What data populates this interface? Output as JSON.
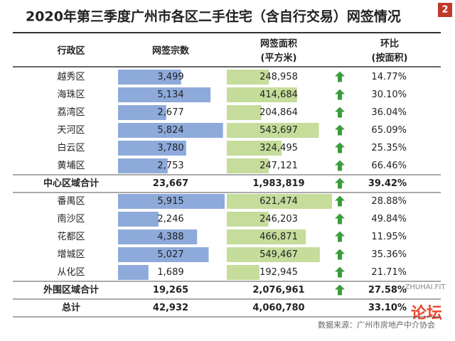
{
  "header": {
    "title": "2020年第三季度广州市各区二手住宅（含自行交易）网签情况",
    "badge": "2"
  },
  "columns": {
    "district": "行政区",
    "count": "网签宗数",
    "area": [
      "网签面积",
      "(平方米)"
    ],
    "ratio": [
      "环比",
      "(按面积)"
    ]
  },
  "sections": [
    {
      "districts": [
        {
          "district": "越秀区",
          "count": "3,499",
          "area": "248,958",
          "ratio": "14.77%"
        },
        {
          "district": "海珠区",
          "count": "5,134",
          "area": "414,684",
          "ratio": "30.10%"
        },
        {
          "district": "荔湾区",
          "count": "2,677",
          "area": "204,864",
          "ratio": "36.04%"
        },
        {
          "district": "天河区",
          "count": "5,824",
          "area": "543,697",
          "ratio": "65.09%"
        },
        {
          "district": "白云区",
          "count": "3,780",
          "area": "324,495",
          "ratio": "25.35%"
        },
        {
          "district": "黄埔区",
          "count": "2,753",
          "area": "247,121",
          "ratio": "66.46%"
        }
      ],
      "subtotal": {
        "district": "中心区域合计",
        "count": "23,667",
        "area": "1,983,819",
        "ratio": "39.42%"
      }
    },
    {
      "districts": [
        {
          "district": "番禺区",
          "count": "5,915",
          "area": "621,474",
          "ratio": "28.88%"
        },
        {
          "district": "南沙区",
          "count": "2,246",
          "area": "246,203",
          "ratio": "49.84%"
        },
        {
          "district": "花都区",
          "count": "4,388",
          "area": "466,871",
          "ratio": "11.95%"
        },
        {
          "district": "增城区",
          "count": "5,027",
          "area": "549,467",
          "ratio": "35.36%"
        },
        {
          "district": "从化区",
          "count": "1,689",
          "area": "192,945",
          "ratio": "21.71%"
        }
      ],
      "subtotal": {
        "district": "外围区域合计",
        "count": "19,265",
        "area": "2,076,961",
        "ratio": "27.58%"
      }
    }
  ],
  "total": {
    "district": "总计",
    "count": "42,932",
    "area": "4,060,780",
    "ratio": "33.10%"
  },
  "footer": {
    "source": "数据来源：广州市房地产中介协会",
    "watermark": "ZHUHAI.FIT",
    "logo": "论坛"
  }
}
